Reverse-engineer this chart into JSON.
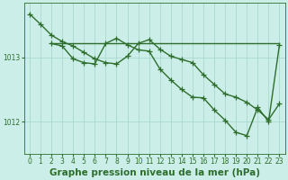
{
  "background_color": "#cceee8",
  "grid_color": "#aad8d0",
  "line_color": "#2d6e2d",
  "line_width": 1.0,
  "marker": "+",
  "marker_size": 4,
  "marker_edge_width": 0.9,
  "xlabel": "Graphe pression niveau de la mer (hPa)",
  "xlabel_fontsize": 7.5,
  "xlabel_bold": true,
  "ylim": [
    1011.5,
    1013.85
  ],
  "xlim": [
    -0.5,
    23.5
  ],
  "yticks": [
    1012,
    1013
  ],
  "xticks": [
    0,
    1,
    2,
    3,
    4,
    5,
    6,
    7,
    8,
    9,
    10,
    11,
    12,
    13,
    14,
    15,
    16,
    17,
    18,
    19,
    20,
    21,
    22,
    23
  ],
  "tick_fontsize": 5.5,
  "series": [
    {
      "x": [
        0,
        1,
        2,
        3,
        4,
        5,
        6,
        7,
        8,
        9,
        10,
        11,
        12,
        13,
        14,
        15,
        16,
        17,
        18,
        19,
        20,
        21,
        22,
        23
      ],
      "y": [
        1013.68,
        1013.52,
        1013.35,
        1013.25,
        1013.18,
        1013.08,
        1012.98,
        1012.92,
        1012.9,
        1013.02,
        1013.22,
        1013.28,
        1013.13,
        1013.02,
        1012.97,
        1012.92,
        1012.73,
        1012.58,
        1012.43,
        1012.38,
        1012.3,
        1012.18,
        1012.03,
        1012.28
      ]
    },
    {
      "x": [
        2,
        3,
        4,
        5,
        6,
        7,
        8,
        9,
        10,
        11,
        12,
        13,
        14,
        15,
        16,
        17,
        18,
        19,
        20,
        21,
        22,
        23
      ],
      "y": [
        1013.22,
        1013.18,
        1012.98,
        1012.92,
        1012.9,
        1013.22,
        1013.3,
        1013.2,
        1013.12,
        1013.1,
        1012.82,
        1012.65,
        1012.5,
        1012.38,
        1012.37,
        1012.18,
        1012.02,
        1011.83,
        1011.78,
        1012.22,
        1012.0,
        1013.2
      ]
    },
    {
      "x": [
        2,
        23
      ],
      "y": [
        1013.22,
        1013.22
      ]
    }
  ]
}
